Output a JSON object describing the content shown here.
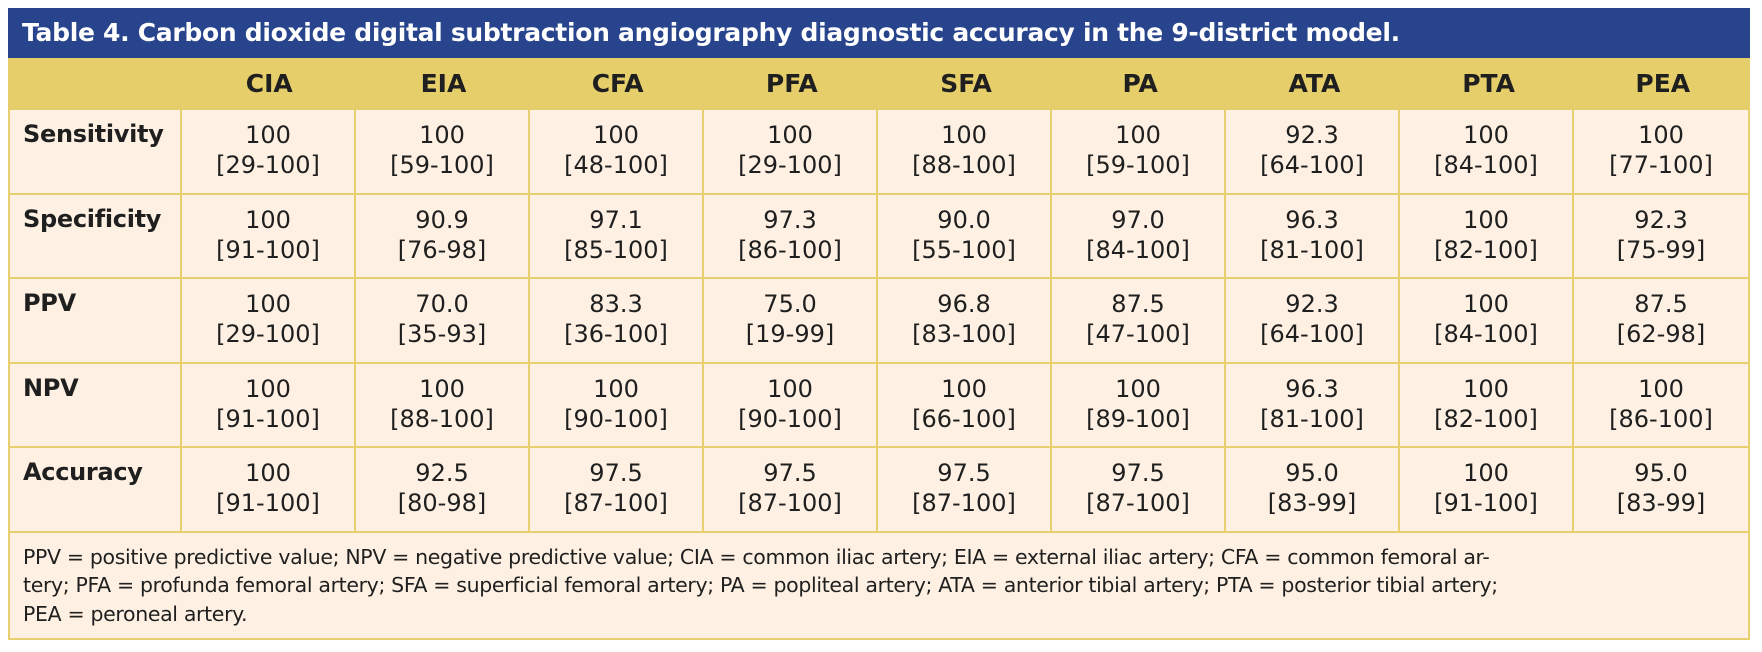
{
  "table": {
    "title": "Table 4. Carbon dioxide digital subtraction angiography diagnostic accuracy in the 9-district model.",
    "columns": [
      "",
      "CIA",
      "EIA",
      "CFA",
      "PFA",
      "SFA",
      "PA",
      "ATA",
      "PTA",
      "PEA"
    ],
    "rows": [
      {
        "label": "Sensitivity",
        "cells": [
          {
            "value": "100",
            "ci": "[29-100]"
          },
          {
            "value": "100",
            "ci": "[59-100]"
          },
          {
            "value": "100",
            "ci": "[48-100]"
          },
          {
            "value": "100",
            "ci": "[29-100]"
          },
          {
            "value": "100",
            "ci": "[88-100]"
          },
          {
            "value": "100",
            "ci": "[59-100]"
          },
          {
            "value": "92.3",
            "ci": "[64-100]"
          },
          {
            "value": "100",
            "ci": "[84-100]"
          },
          {
            "value": "100",
            "ci": "[77-100]"
          }
        ]
      },
      {
        "label": "Specificity",
        "cells": [
          {
            "value": "100",
            "ci": "[91-100]"
          },
          {
            "value": "90.9",
            "ci": "[76-98]"
          },
          {
            "value": "97.1",
            "ci": "[85-100]"
          },
          {
            "value": "97.3",
            "ci": "[86-100]"
          },
          {
            "value": "90.0",
            "ci": "[55-100]"
          },
          {
            "value": "97.0",
            "ci": "[84-100]"
          },
          {
            "value": "96.3",
            "ci": "[81-100]"
          },
          {
            "value": "100",
            "ci": "[82-100]"
          },
          {
            "value": "92.3",
            "ci": "[75-99]"
          }
        ]
      },
      {
        "label": "PPV",
        "cells": [
          {
            "value": "100",
            "ci": "[29-100]"
          },
          {
            "value": "70.0",
            "ci": "[35-93]"
          },
          {
            "value": "83.3",
            "ci": "[36-100]"
          },
          {
            "value": "75.0",
            "ci": "[19-99]"
          },
          {
            "value": "96.8",
            "ci": "[83-100]"
          },
          {
            "value": "87.5",
            "ci": "[47-100]"
          },
          {
            "value": "92.3",
            "ci": "[64-100]"
          },
          {
            "value": "100",
            "ci": "[84-100]"
          },
          {
            "value": "87.5",
            "ci": "[62-98]"
          }
        ]
      },
      {
        "label": "NPV",
        "cells": [
          {
            "value": "100",
            "ci": "[91-100]"
          },
          {
            "value": "100",
            "ci": "[88-100]"
          },
          {
            "value": "100",
            "ci": "[90-100]"
          },
          {
            "value": "100",
            "ci": "[90-100]"
          },
          {
            "value": "100",
            "ci": "[66-100]"
          },
          {
            "value": "100",
            "ci": "[89-100]"
          },
          {
            "value": "96.3",
            "ci": "[81-100]"
          },
          {
            "value": "100",
            "ci": "[82-100]"
          },
          {
            "value": "100",
            "ci": "[86-100]"
          }
        ]
      },
      {
        "label": "Accuracy",
        "cells": [
          {
            "value": "100",
            "ci": "[91-100]"
          },
          {
            "value": "92.5",
            "ci": "[80-98]"
          },
          {
            "value": "97.5",
            "ci": "[87-100]"
          },
          {
            "value": "97.5",
            "ci": "[87-100]"
          },
          {
            "value": "97.5",
            "ci": "[87-100]"
          },
          {
            "value": "97.5",
            "ci": "[87-100]"
          },
          {
            "value": "95.0",
            "ci": "[83-99]"
          },
          {
            "value": "100",
            "ci": "[91-100]"
          },
          {
            "value": "95.0",
            "ci": "[83-99]"
          }
        ]
      }
    ],
    "footnote_lines": [
      "PPV = positive predictive value; NPV = negative predictive value; CIA = common iliac artery; EIA = external iliac artery; CFA = common femoral ar-",
      "tery; PFA = profunda femoral artery; SFA = superficial femoral artery; PA = popliteal artery; ATA = anterior tibial artery; PTA = posterior tibial artery;",
      "PEA = peroneal artery."
    ]
  },
  "colors": {
    "title_bg": "#27448C",
    "header_bg": "#E6CF6A",
    "body_bg": "#FEF1E3",
    "border": "#E8D06E"
  }
}
